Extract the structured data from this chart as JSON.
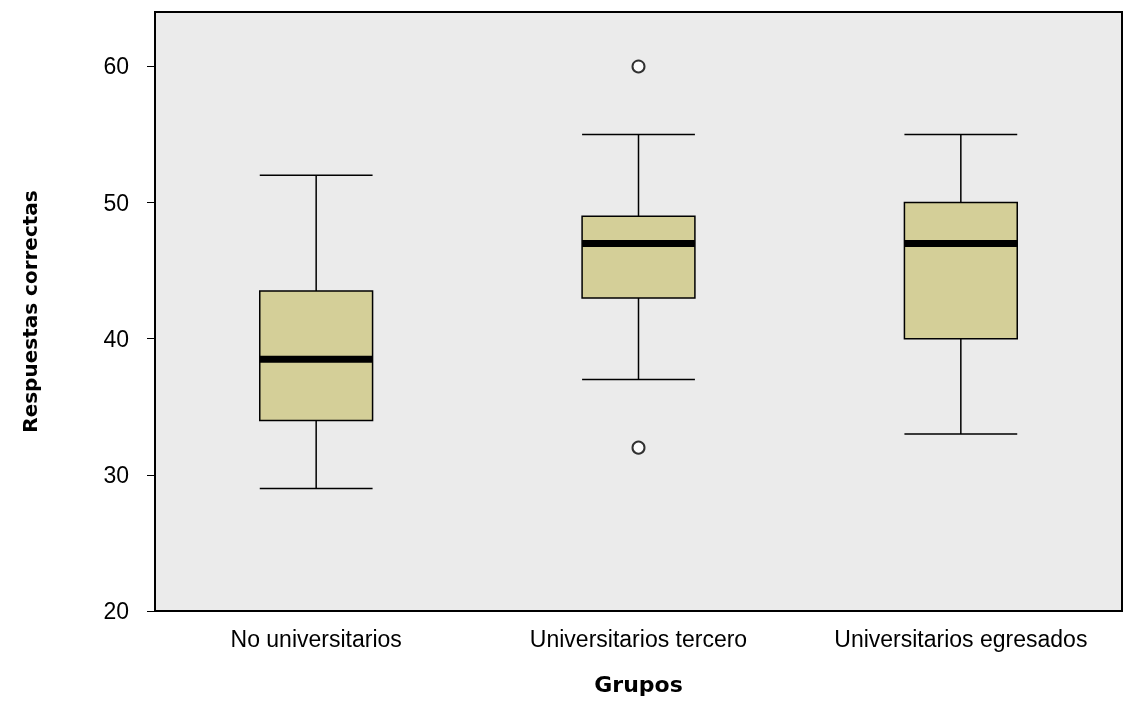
{
  "chart_data": {
    "type": "box",
    "xlabel": "Grupos",
    "ylabel": "Respuestas correctas",
    "categories": [
      "No universitarios",
      "Universitarios tercero",
      "Universitarios egresados"
    ],
    "color": "#d4cf98",
    "boxes": [
      {
        "low": 29,
        "q1": 34,
        "median": 38.5,
        "q3": 43.5,
        "high": 52
      },
      {
        "low": 37,
        "q1": 43,
        "median": 47,
        "q3": 49,
        "high": 55,
        "outliers": [
          32,
          60
        ]
      },
      {
        "low": 33,
        "q1": 40,
        "median": 47,
        "q3": 50,
        "high": 55
      }
    ],
    "ylim": [
      20,
      64
    ],
    "yticks": [
      20,
      30,
      40,
      50,
      60
    ],
    "grid": false
  }
}
